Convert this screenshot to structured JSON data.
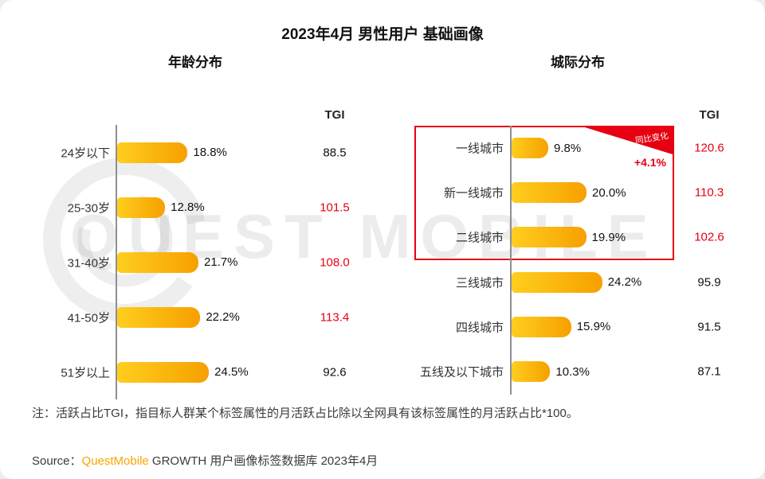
{
  "title": "2023年4月 男性用户 基础画像",
  "watermark": {
    "text": "QUEST MOBILE"
  },
  "note": "注：活跃占比TGI，指目标人群某个标签属性的月活跃占比除以全网具有该标签属性的月活跃占比*100。",
  "source": {
    "prefix": "Source：",
    "brand": "QuestMobile",
    "rest": " GROWTH 用户画像标签数据库 2023年4月"
  },
  "colors": {
    "bar_start": "#ffce1f",
    "bar_end": "#f6a000",
    "red": "#e60012",
    "orange": "#f7a600"
  },
  "chart_data": [
    {
      "type": "bar",
      "orientation": "horizontal",
      "title": "年龄分布",
      "tgi_header": "TGI",
      "value_unit": "%",
      "xlim": [
        0,
        30
      ],
      "rows": [
        {
          "label": "24岁以下",
          "value": 18.8,
          "value_label": "18.8%",
          "tgi": "88.5",
          "tgi_red": false
        },
        {
          "label": "25-30岁",
          "value": 12.8,
          "value_label": "12.8%",
          "tgi": "101.5",
          "tgi_red": true
        },
        {
          "label": "31-40岁",
          "value": 21.7,
          "value_label": "21.7%",
          "tgi": "108.0",
          "tgi_red": true
        },
        {
          "label": "41-50岁",
          "value": 22.2,
          "value_label": "22.2%",
          "tgi": "113.4",
          "tgi_red": true
        },
        {
          "label": "51岁以上",
          "value": 24.5,
          "value_label": "24.5%",
          "tgi": "92.6",
          "tgi_red": false
        }
      ]
    },
    {
      "type": "bar",
      "orientation": "horizontal",
      "title": "城际分布",
      "tgi_header": "TGI",
      "value_unit": "%",
      "xlim": [
        0,
        30
      ],
      "highlight": {
        "row_count": 3,
        "annotation_label": "同比变化",
        "annotation_value": "+4.1%"
      },
      "rows": [
        {
          "label": "一线城市",
          "value": 9.8,
          "value_label": "9.8%",
          "tgi": "120.6",
          "tgi_red": true
        },
        {
          "label": "新一线城市",
          "value": 20.0,
          "value_label": "20.0%",
          "tgi": "110.3",
          "tgi_red": true
        },
        {
          "label": "二线城市",
          "value": 19.9,
          "value_label": "19.9%",
          "tgi": "102.6",
          "tgi_red": true
        },
        {
          "label": "三线城市",
          "value": 24.2,
          "value_label": "24.2%",
          "tgi": "95.9",
          "tgi_red": false
        },
        {
          "label": "四线城市",
          "value": 15.9,
          "value_label": "15.9%",
          "tgi": "91.5",
          "tgi_red": false
        },
        {
          "label": "五线及以下城市",
          "value": 10.3,
          "value_label": "10.3%",
          "tgi": "87.1",
          "tgi_red": false
        }
      ]
    }
  ]
}
